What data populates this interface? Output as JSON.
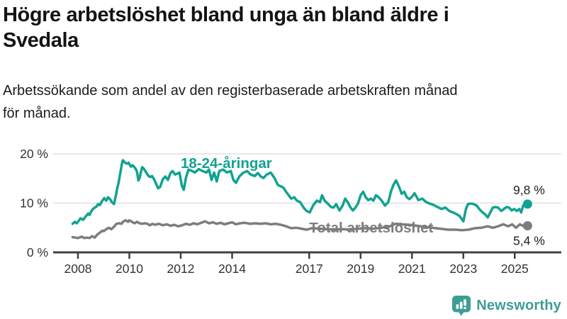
{
  "title": "Högre arbetslöshet bland unga än bland äldre i Svedala",
  "title_lines": [
    "Högre arbetslöshet bland unga än bland äldre i",
    "Svedala"
  ],
  "subtitle_lines": [
    "Arbetssökande som andel av den registerbaserade arbetskraften månad",
    "för månad."
  ],
  "logo": {
    "text": "Newsworthy",
    "color": "#3E9D94",
    "icon": "newsworthy-barchart-bubble-icon"
  },
  "chart_data": {
    "type": "line",
    "title": "Högre arbetslöshet bland unga än bland äldre i Svedala",
    "subtitle": "Arbetssökande som andel av den registerbaserade arbetskraften månad för månad.",
    "xlabel": "",
    "ylabel": "",
    "x_unit": "decimal year (monthly data)",
    "y_unit": "percent",
    "xlim": [
      2007.6,
      2025.9
    ],
    "ylim": [
      0,
      20
    ],
    "grid": "horizontal gridlines at 10 and 20, dark baseline at 0",
    "legend_position": "inline labels on lines",
    "colors": {
      "grid": "#e1e1e1",
      "axis": "#404040",
      "tick_text": "#333333",
      "end_label_text": "#1f1f1f"
    },
    "y_ticks": [
      {
        "value": 0,
        "label": "0 %"
      },
      {
        "value": 10,
        "label": "10 %"
      },
      {
        "value": 20,
        "label": "20 %"
      }
    ],
    "x_ticks": [
      {
        "value": 2008,
        "label": "2008"
      },
      {
        "value": 2010,
        "label": "2010"
      },
      {
        "value": 2012,
        "label": "2012"
      },
      {
        "value": 2014,
        "label": "2014"
      },
      {
        "value": 2017,
        "label": "2017"
      },
      {
        "value": 2019,
        "label": "2019"
      },
      {
        "value": 2021,
        "label": "2021"
      },
      {
        "value": 2023,
        "label": "2023"
      },
      {
        "value": 2025,
        "label": "2025"
      }
    ],
    "annotations": [
      {
        "text": "18-24-åringar",
        "x": 2012.0,
        "y": 17.1,
        "color": "#12A291",
        "anchor": "start"
      },
      {
        "text": "Total arbetslöshet",
        "x": 2017.0,
        "y": 4.0,
        "color": "#7d7d7d",
        "anchor": "start"
      }
    ],
    "series": [
      {
        "name": "18-24-åringar",
        "color": "#12A291",
        "end_value": 9.8,
        "end_label": "9,8 %",
        "points": [
          [
            2007.79,
            5.8
          ],
          [
            2007.88,
            6.2
          ],
          [
            2007.95,
            5.9
          ],
          [
            2008.0,
            6.2
          ],
          [
            2008.1,
            6.9
          ],
          [
            2008.2,
            6.6
          ],
          [
            2008.3,
            7.3
          ],
          [
            2008.4,
            7.9
          ],
          [
            2008.45,
            7.6
          ],
          [
            2008.55,
            8.6
          ],
          [
            2008.65,
            9.1
          ],
          [
            2008.72,
            9.3
          ],
          [
            2008.78,
            9.8
          ],
          [
            2008.85,
            9.6
          ],
          [
            2008.95,
            10.5
          ],
          [
            2009.02,
            11.0
          ],
          [
            2009.1,
            10.5
          ],
          [
            2009.17,
            11.2
          ],
          [
            2009.25,
            10.8
          ],
          [
            2009.32,
            10.2
          ],
          [
            2009.4,
            9.8
          ],
          [
            2009.48,
            11.7
          ],
          [
            2009.53,
            13.1
          ],
          [
            2009.58,
            14.1
          ],
          [
            2009.62,
            15.3
          ],
          [
            2009.67,
            16.7
          ],
          [
            2009.71,
            18.0
          ],
          [
            2009.75,
            18.7
          ],
          [
            2009.8,
            18.4
          ],
          [
            2009.86,
            18.1
          ],
          [
            2009.92,
            18.0
          ],
          [
            2009.97,
            18.2
          ],
          [
            2010.0,
            17.9
          ],
          [
            2010.06,
            17.4
          ],
          [
            2010.12,
            17.7
          ],
          [
            2010.18,
            17.4
          ],
          [
            2010.25,
            16.9
          ],
          [
            2010.3,
            16.3
          ],
          [
            2010.35,
            14.6
          ],
          [
            2010.4,
            15.1
          ],
          [
            2010.45,
            16.3
          ],
          [
            2010.5,
            17.3
          ],
          [
            2010.56,
            17.0
          ],
          [
            2010.62,
            16.5
          ],
          [
            2010.68,
            16.0
          ],
          [
            2010.75,
            15.5
          ],
          [
            2010.82,
            15.3
          ],
          [
            2010.88,
            15.5
          ],
          [
            2010.95,
            15.0
          ],
          [
            2011.05,
            13.8
          ],
          [
            2011.12,
            13.0
          ],
          [
            2011.2,
            13.3
          ],
          [
            2011.3,
            14.8
          ],
          [
            2011.4,
            15.4
          ],
          [
            2011.5,
            14.7
          ],
          [
            2011.6,
            16.1
          ],
          [
            2011.68,
            16.5
          ],
          [
            2011.78,
            15.8
          ],
          [
            2011.88,
            16.0
          ],
          [
            2011.95,
            16.2
          ],
          [
            2012.05,
            13.4
          ],
          [
            2012.12,
            12.7
          ],
          [
            2012.2,
            15.1
          ],
          [
            2012.3,
            16.8
          ],
          [
            2012.45,
            16.5
          ],
          [
            2012.55,
            16.2
          ],
          [
            2012.7,
            16.9
          ],
          [
            2012.85,
            16.5
          ],
          [
            2013.0,
            16.2
          ],
          [
            2013.1,
            16.8
          ],
          [
            2013.2,
            14.7
          ],
          [
            2013.3,
            16.2
          ],
          [
            2013.4,
            14.4
          ],
          [
            2013.5,
            16.5
          ],
          [
            2013.65,
            16.8
          ],
          [
            2013.8,
            16.2
          ],
          [
            2013.95,
            16.5
          ],
          [
            2014.05,
            14.7
          ],
          [
            2014.15,
            14.1
          ],
          [
            2014.28,
            15.4
          ],
          [
            2014.42,
            16.1
          ],
          [
            2014.58,
            16.5
          ],
          [
            2014.72,
            15.8
          ],
          [
            2014.88,
            15.5
          ],
          [
            2015.0,
            16.1
          ],
          [
            2015.12,
            15.4
          ],
          [
            2015.22,
            15.1
          ],
          [
            2015.35,
            15.8
          ],
          [
            2015.5,
            16.2
          ],
          [
            2015.65,
            15.1
          ],
          [
            2015.78,
            13.7
          ],
          [
            2015.9,
            13.4
          ],
          [
            2016.0,
            13.1
          ],
          [
            2016.1,
            12.3
          ],
          [
            2016.2,
            11.6
          ],
          [
            2016.3,
            10.9
          ],
          [
            2016.42,
            11.2
          ],
          [
            2016.52,
            10.5
          ],
          [
            2016.65,
            10.2
          ],
          [
            2016.78,
            9.1
          ],
          [
            2016.9,
            8.4
          ],
          [
            2017.02,
            8.1
          ],
          [
            2017.15,
            9.5
          ],
          [
            2017.3,
            10.5
          ],
          [
            2017.42,
            10.2
          ],
          [
            2017.5,
            11.6
          ],
          [
            2017.6,
            10.5
          ],
          [
            2017.72,
            9.9
          ],
          [
            2017.85,
            9.2
          ],
          [
            2017.95,
            9.1
          ],
          [
            2018.05,
            9.8
          ],
          [
            2018.18,
            8.5
          ],
          [
            2018.3,
            9.5
          ],
          [
            2018.4,
            10.9
          ],
          [
            2018.5,
            10.2
          ],
          [
            2018.6,
            9.2
          ],
          [
            2018.7,
            8.5
          ],
          [
            2018.8,
            9.1
          ],
          [
            2018.9,
            9.9
          ],
          [
            2019.0,
            11.6
          ],
          [
            2019.1,
            12.3
          ],
          [
            2019.2,
            11.2
          ],
          [
            2019.3,
            10.6
          ],
          [
            2019.4,
            10.9
          ],
          [
            2019.5,
            10.5
          ],
          [
            2019.6,
            11.6
          ],
          [
            2019.7,
            11.2
          ],
          [
            2019.82,
            10.5
          ],
          [
            2019.95,
            9.5
          ],
          [
            2020.08,
            10.2
          ],
          [
            2020.18,
            12.3
          ],
          [
            2020.28,
            13.7
          ],
          [
            2020.38,
            14.6
          ],
          [
            2020.5,
            13.3
          ],
          [
            2020.6,
            11.9
          ],
          [
            2020.7,
            12.3
          ],
          [
            2020.8,
            11.2
          ],
          [
            2020.9,
            10.8
          ],
          [
            2021.0,
            11.3
          ],
          [
            2021.1,
            12.0
          ],
          [
            2021.25,
            10.6
          ],
          [
            2021.4,
            10.9
          ],
          [
            2021.55,
            10.2
          ],
          [
            2021.7,
            9.9
          ],
          [
            2021.85,
            9.6
          ],
          [
            2022.0,
            9.2
          ],
          [
            2022.15,
            8.8
          ],
          [
            2022.3,
            9.1
          ],
          [
            2022.45,
            8.4
          ],
          [
            2022.6,
            8.1
          ],
          [
            2022.72,
            7.8
          ],
          [
            2022.85,
            7.4
          ],
          [
            2023.0,
            6.3
          ],
          [
            2023.1,
            8.8
          ],
          [
            2023.18,
            9.8
          ],
          [
            2023.28,
            9.9
          ],
          [
            2023.4,
            9.8
          ],
          [
            2023.52,
            9.5
          ],
          [
            2023.62,
            8.8
          ],
          [
            2023.75,
            8.1
          ],
          [
            2023.85,
            7.7
          ],
          [
            2023.95,
            7.1
          ],
          [
            2024.05,
            8.1
          ],
          [
            2024.15,
            9.1
          ],
          [
            2024.25,
            9.2
          ],
          [
            2024.35,
            9.1
          ],
          [
            2024.48,
            8.4
          ],
          [
            2024.58,
            8.8
          ],
          [
            2024.68,
            9.2
          ],
          [
            2024.78,
            9.1
          ],
          [
            2024.88,
            8.5
          ],
          [
            2024.98,
            8.8
          ],
          [
            2025.08,
            8.4
          ],
          [
            2025.18,
            8.8
          ],
          [
            2025.25,
            8.1
          ],
          [
            2025.33,
            9.5
          ],
          [
            2025.42,
            9.9
          ],
          [
            2025.5,
            9.8
          ]
        ]
      },
      {
        "name": "Total arbetslöshet",
        "color": "#7d7d7d",
        "end_value": 5.4,
        "end_label": "5,4 %",
        "points": [
          [
            2007.79,
            3.1
          ],
          [
            2007.9,
            3.0
          ],
          [
            2008.0,
            2.9
          ],
          [
            2008.15,
            3.2
          ],
          [
            2008.25,
            2.9
          ],
          [
            2008.35,
            3.0
          ],
          [
            2008.45,
            2.9
          ],
          [
            2008.55,
            3.3
          ],
          [
            2008.65,
            3.0
          ],
          [
            2008.75,
            3.6
          ],
          [
            2008.85,
            4.0
          ],
          [
            2008.95,
            4.4
          ],
          [
            2009.0,
            4.3
          ],
          [
            2009.1,
            4.7
          ],
          [
            2009.2,
            5.0
          ],
          [
            2009.3,
            4.7
          ],
          [
            2009.4,
            5.2
          ],
          [
            2009.5,
            5.8
          ],
          [
            2009.6,
            5.9
          ],
          [
            2009.7,
            5.8
          ],
          [
            2009.75,
            6.2
          ],
          [
            2009.85,
            6.5
          ],
          [
            2009.95,
            6.2
          ],
          [
            2010.0,
            6.5
          ],
          [
            2010.1,
            6.2
          ],
          [
            2010.2,
            5.9
          ],
          [
            2010.3,
            6.2
          ],
          [
            2010.4,
            5.9
          ],
          [
            2010.5,
            5.8
          ],
          [
            2010.6,
            5.9
          ],
          [
            2010.7,
            5.8
          ],
          [
            2010.8,
            5.5
          ],
          [
            2010.9,
            5.8
          ],
          [
            2011.0,
            5.6
          ],
          [
            2011.15,
            5.8
          ],
          [
            2011.3,
            5.5
          ],
          [
            2011.45,
            5.7
          ],
          [
            2011.6,
            5.4
          ],
          [
            2011.75,
            5.6
          ],
          [
            2011.9,
            5.3
          ],
          [
            2012.05,
            5.5
          ],
          [
            2012.2,
            5.8
          ],
          [
            2012.35,
            5.6
          ],
          [
            2012.5,
            5.9
          ],
          [
            2012.65,
            5.7
          ],
          [
            2012.8,
            6.0
          ],
          [
            2012.95,
            6.3
          ],
          [
            2013.1,
            5.9
          ],
          [
            2013.25,
            6.1
          ],
          [
            2013.4,
            5.8
          ],
          [
            2013.55,
            6.0
          ],
          [
            2013.7,
            5.7
          ],
          [
            2013.85,
            5.9
          ],
          [
            2014.0,
            6.1
          ],
          [
            2014.15,
            5.7
          ],
          [
            2014.3,
            5.9
          ],
          [
            2014.5,
            6.0
          ],
          [
            2014.7,
            5.8
          ],
          [
            2014.9,
            5.9
          ],
          [
            2015.1,
            5.8
          ],
          [
            2015.3,
            5.9
          ],
          [
            2015.5,
            5.7
          ],
          [
            2015.7,
            5.8
          ],
          [
            2015.9,
            5.6
          ],
          [
            2016.1,
            5.3
          ],
          [
            2016.3,
            4.9
          ],
          [
            2016.5,
            5.0
          ],
          [
            2016.7,
            4.8
          ],
          [
            2016.9,
            4.6
          ],
          [
            2017.1,
            4.9
          ],
          [
            2017.4,
            4.8
          ],
          [
            2017.7,
            4.7
          ],
          [
            2018.0,
            4.6
          ],
          [
            2018.3,
            4.7
          ],
          [
            2018.6,
            4.6
          ],
          [
            2018.9,
            4.8
          ],
          [
            2019.2,
            4.9
          ],
          [
            2019.5,
            4.8
          ],
          [
            2019.8,
            5.0
          ],
          [
            2020.1,
            5.2
          ],
          [
            2020.35,
            5.8
          ],
          [
            2020.6,
            5.7
          ],
          [
            2020.9,
            5.6
          ],
          [
            2021.2,
            5.4
          ],
          [
            2021.5,
            5.2
          ],
          [
            2021.8,
            5.0
          ],
          [
            2022.1,
            4.8
          ],
          [
            2022.4,
            4.6
          ],
          [
            2022.7,
            4.6
          ],
          [
            2022.95,
            4.5
          ],
          [
            2023.2,
            4.6
          ],
          [
            2023.45,
            4.9
          ],
          [
            2023.7,
            5.0
          ],
          [
            2023.95,
            5.3
          ],
          [
            2024.15,
            5.0
          ],
          [
            2024.35,
            5.3
          ],
          [
            2024.55,
            5.7
          ],
          [
            2024.75,
            5.3
          ],
          [
            2024.9,
            5.7
          ],
          [
            2025.05,
            5.0
          ],
          [
            2025.2,
            5.7
          ],
          [
            2025.35,
            5.3
          ],
          [
            2025.5,
            5.4
          ]
        ]
      }
    ]
  }
}
